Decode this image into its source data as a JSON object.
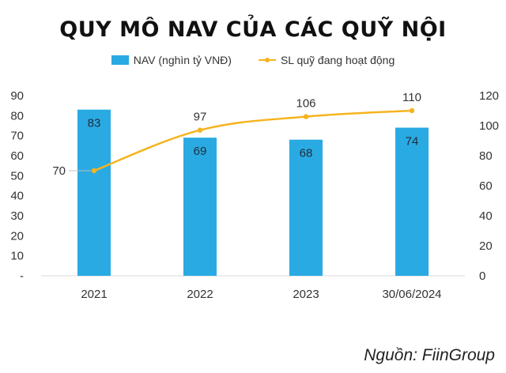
{
  "chart_data": {
    "type": "bar",
    "title": "QUY MÔ NAV CỦA CÁC QUỸ NỘI",
    "categories": [
      "2021",
      "2022",
      "2023",
      "30/06/2024"
    ],
    "series": [
      {
        "name": "NAV (nghìn tỷ VNĐ)",
        "type": "bar",
        "axis": "left",
        "values": [
          83,
          69,
          68,
          74
        ],
        "color": "#2aaae2"
      },
      {
        "name": "SL quỹ đang hoạt động",
        "type": "line",
        "axis": "right",
        "values": [
          70,
          97,
          106,
          110
        ],
        "color": "#f5b41e"
      }
    ],
    "y_left": {
      "range": [
        0,
        90
      ],
      "ticks": [
        "-",
        "10",
        "20",
        "30",
        "40",
        "50",
        "60",
        "70",
        "80",
        "90"
      ]
    },
    "y_right": {
      "range": [
        0,
        120
      ],
      "ticks": [
        "0",
        "20",
        "40",
        "60",
        "80",
        "100",
        "120"
      ]
    },
    "grid": false,
    "legend_position": "top-center"
  },
  "source": "Nguồn: FiinGroup"
}
